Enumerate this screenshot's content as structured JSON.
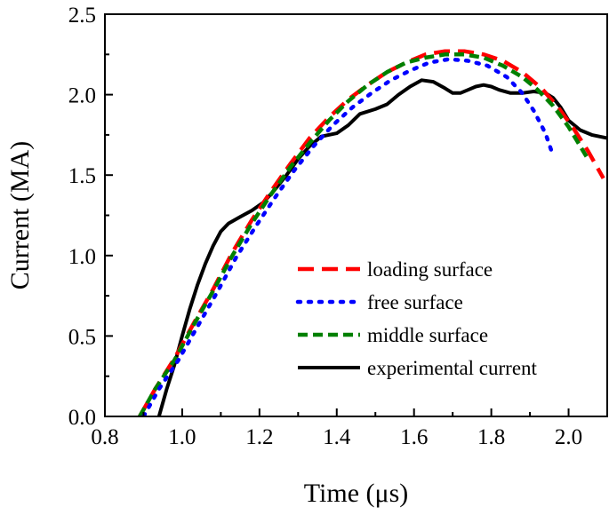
{
  "chart_data": {
    "type": "line",
    "title": "",
    "xlabel": "Time (μs)",
    "ylabel": "Current (MA)",
    "xlim": [
      0.8,
      2.1
    ],
    "ylim": [
      0.0,
      2.5
    ],
    "xticks": [
      "0.8",
      "1.0",
      "1.2",
      "1.4",
      "1.6",
      "1.8",
      "2.0"
    ],
    "xtick_values": [
      0.8,
      1.0,
      1.2,
      1.4,
      1.6,
      1.8,
      2.0
    ],
    "yticks": [
      "0.0",
      "0.5",
      "1.0",
      "1.5",
      "2.0",
      "2.5"
    ],
    "ytick_values": [
      0.0,
      0.5,
      1.0,
      1.5,
      2.0,
      2.5
    ],
    "legend_position": "bottom-right",
    "series": [
      {
        "name": "loading surface",
        "color": "#ff0000",
        "style": "dashed",
        "x": [
          0.89,
          0.93,
          0.98,
          1.03,
          1.08,
          1.13,
          1.18,
          1.23,
          1.28,
          1.33,
          1.38,
          1.43,
          1.48,
          1.53,
          1.58,
          1.63,
          1.68,
          1.73,
          1.78,
          1.83,
          1.88,
          1.93,
          1.97,
          2.01,
          2.05,
          2.09
        ],
        "y": [
          0.0,
          0.17,
          0.36,
          0.58,
          0.79,
          1.02,
          1.22,
          1.4,
          1.57,
          1.73,
          1.86,
          1.97,
          2.06,
          2.14,
          2.2,
          2.25,
          2.27,
          2.27,
          2.25,
          2.21,
          2.14,
          2.04,
          1.93,
          1.8,
          1.65,
          1.48
        ]
      },
      {
        "name": "free surface",
        "color": "#0000ff",
        "style": "dotted",
        "x": [
          0.9,
          0.94,
          0.99,
          1.04,
          1.09,
          1.14,
          1.19,
          1.24,
          1.29,
          1.34,
          1.39,
          1.44,
          1.49,
          1.54,
          1.59,
          1.64,
          1.69,
          1.74,
          1.79,
          1.84,
          1.88,
          1.91,
          1.94,
          1.96
        ],
        "y": [
          0.0,
          0.17,
          0.35,
          0.56,
          0.77,
          0.99,
          1.18,
          1.36,
          1.53,
          1.68,
          1.81,
          1.92,
          2.01,
          2.09,
          2.15,
          2.2,
          2.22,
          2.21,
          2.18,
          2.11,
          2.01,
          1.9,
          1.76,
          1.62
        ]
      },
      {
        "name": "middle surface",
        "color": "#008000",
        "style": "dashed",
        "x": [
          0.89,
          0.93,
          0.98,
          1.03,
          1.08,
          1.13,
          1.18,
          1.23,
          1.28,
          1.33,
          1.38,
          1.43,
          1.48,
          1.53,
          1.58,
          1.63,
          1.68,
          1.73,
          1.78,
          1.83,
          1.88,
          1.92,
          1.96,
          2.0,
          2.03,
          2.05
        ],
        "y": [
          0.0,
          0.17,
          0.35,
          0.57,
          0.78,
          1.0,
          1.2,
          1.38,
          1.55,
          1.7,
          1.84,
          1.96,
          2.06,
          2.14,
          2.2,
          2.23,
          2.25,
          2.25,
          2.23,
          2.18,
          2.11,
          2.03,
          1.93,
          1.8,
          1.68,
          1.6
        ]
      },
      {
        "name": "experimental current",
        "color": "#000000",
        "style": "solid",
        "x": [
          0.94,
          0.96,
          0.98,
          1.0,
          1.02,
          1.04,
          1.06,
          1.08,
          1.1,
          1.12,
          1.15,
          1.18,
          1.21,
          1.24,
          1.27,
          1.3,
          1.33,
          1.36,
          1.4,
          1.43,
          1.46,
          1.5,
          1.53,
          1.56,
          1.59,
          1.62,
          1.65,
          1.68,
          1.7,
          1.72,
          1.74,
          1.76,
          1.78,
          1.8,
          1.82,
          1.85,
          1.88,
          1.91,
          1.94,
          1.96,
          1.98,
          2.0,
          2.03,
          2.06,
          2.1
        ],
        "y": [
          0.0,
          0.17,
          0.32,
          0.5,
          0.67,
          0.82,
          0.95,
          1.06,
          1.15,
          1.2,
          1.24,
          1.28,
          1.33,
          1.41,
          1.5,
          1.6,
          1.68,
          1.74,
          1.76,
          1.81,
          1.88,
          1.91,
          1.94,
          2.0,
          2.05,
          2.09,
          2.08,
          2.04,
          2.01,
          2.01,
          2.03,
          2.05,
          2.06,
          2.05,
          2.03,
          2.01,
          2.01,
          2.02,
          2.01,
          1.98,
          1.92,
          1.84,
          1.78,
          1.75,
          1.73
        ]
      }
    ]
  }
}
